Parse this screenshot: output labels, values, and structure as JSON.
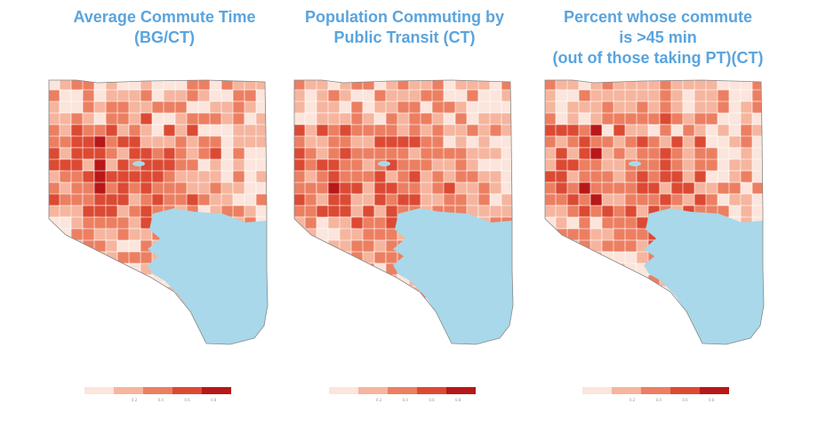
{
  "panels": [
    {
      "id": "avg-commute",
      "title": "Average Commute Time\n(BG/CT)",
      "legend_ticks": [
        "0.2",
        "0.4",
        "0.6",
        "0.8"
      ]
    },
    {
      "id": "public-transit",
      "title": "Population Commuting by\nPublic Transit (CT)",
      "legend_ticks": [
        "0.2",
        "0.4",
        "0.6",
        "0.8"
      ]
    },
    {
      "id": "long-commute",
      "title": "Percent whose commute\nis >45 min\n(out of those taking PT)(CT)",
      "legend_ticks": [
        "0.2",
        "0.4",
        "0.6",
        "0.8"
      ]
    }
  ],
  "colors": {
    "title": "#5aa4de",
    "water": "#a8d8ea",
    "scale": [
      "#fbe5dc",
      "#f6b59e",
      "#ec7f62",
      "#dc4a33",
      "#b81818"
    ]
  }
}
